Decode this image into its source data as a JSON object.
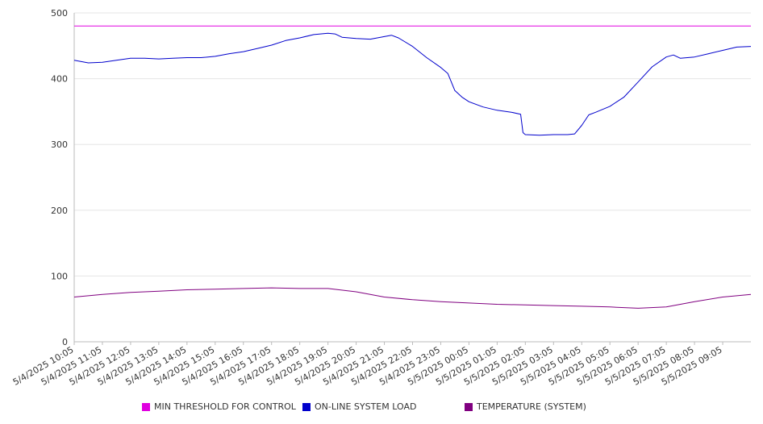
{
  "chart_data": {
    "type": "line",
    "title": "",
    "xlabel": "",
    "ylabel": "",
    "ylim": [
      0,
      500
    ],
    "yticks": [
      0,
      100,
      200,
      300,
      400,
      500
    ],
    "x_ticks": [
      "5/4/2025 10:05",
      "5/4/2025 11:05",
      "5/4/2025 12:05",
      "5/4/2025 13:05",
      "5/4/2025 14:05",
      "5/4/2025 15:05",
      "5/4/2025 16:05",
      "5/4/2025 17:05",
      "5/4/2025 18:05",
      "5/4/2025 19:05",
      "5/4/2025 20:05",
      "5/4/2025 21:05",
      "5/4/2025 22:05",
      "5/4/2025 23:05",
      "5/5/2025 00:05",
      "5/5/2025 01:05",
      "5/5/2025 02:05",
      "5/5/2025 03:05",
      "5/5/2025 04:05",
      "5/5/2025 05:05",
      "5/5/2025 06:05",
      "5/5/2025 07:05",
      "5/5/2025 08:05",
      "5/5/2025 09:05"
    ],
    "x_range": [
      "5/4/2025 10:05",
      "5/5/2025 10:05"
    ],
    "grid": true,
    "legend_position": "bottom",
    "series": [
      {
        "name": "MIN THRESHOLD FOR CONTROL",
        "color": "#e000e0",
        "x": [
          "5/4/2025 10:05",
          "5/5/2025 10:05"
        ],
        "values": [
          480,
          480
        ]
      },
      {
        "name": "ON-LINE SYSTEM LOAD",
        "color": "#0000cc",
        "x": [
          "5/4/2025 10:05",
          "5/4/2025 10:35",
          "5/4/2025 11:05",
          "5/4/2025 11:35",
          "5/4/2025 12:05",
          "5/4/2025 12:35",
          "5/4/2025 13:05",
          "5/4/2025 13:35",
          "5/4/2025 14:05",
          "5/4/2025 14:35",
          "5/4/2025 15:05",
          "5/4/2025 15:35",
          "5/4/2025 16:05",
          "5/4/2025 16:35",
          "5/4/2025 17:05",
          "5/4/2025 17:35",
          "5/4/2025 18:05",
          "5/4/2025 18:35",
          "5/4/2025 19:05",
          "5/4/2025 19:20",
          "5/4/2025 19:35",
          "5/4/2025 20:05",
          "5/4/2025 20:35",
          "5/4/2025 21:05",
          "5/4/2025 21:20",
          "5/4/2025 21:35",
          "5/4/2025 22:05",
          "5/4/2025 22:35",
          "5/4/2025 23:05",
          "5/4/2025 23:20",
          "5/4/2025 23:35",
          "5/4/2025 23:50",
          "5/5/2025 00:05",
          "5/5/2025 00:35",
          "5/5/2025 01:05",
          "5/5/2025 01:35",
          "5/5/2025 01:55",
          "5/5/2025 02:00",
          "5/5/2025 02:05",
          "5/5/2025 02:35",
          "5/5/2025 03:05",
          "5/5/2025 03:35",
          "5/5/2025 03:50",
          "5/5/2025 04:05",
          "5/5/2025 04:20",
          "5/5/2025 04:35",
          "5/5/2025 05:05",
          "5/5/2025 05:35",
          "5/5/2025 06:05",
          "5/5/2025 06:35",
          "5/5/2025 07:05",
          "5/5/2025 07:20",
          "5/5/2025 07:35",
          "5/5/2025 08:05",
          "5/5/2025 08:35",
          "5/5/2025 09:05",
          "5/5/2025 09:35",
          "5/5/2025 10:05"
        ],
        "values": [
          428,
          424,
          425,
          428,
          431,
          431,
          430,
          431,
          432,
          432,
          434,
          438,
          441,
          446,
          451,
          458,
          462,
          467,
          469,
          468,
          463,
          461,
          460,
          464,
          466,
          462,
          449,
          432,
          417,
          408,
          382,
          372,
          365,
          357,
          352,
          349,
          346,
          318,
          315,
          314,
          315,
          315,
          316,
          329,
          345,
          349,
          358,
          372,
          395,
          418,
          433,
          436,
          431,
          433,
          438,
          443,
          448,
          449
        ]
      },
      {
        "name": "TEMPERATURE (SYSTEM)",
        "color": "#800080",
        "x": [
          "5/4/2025 10:05",
          "5/4/2025 11:05",
          "5/4/2025 12:05",
          "5/4/2025 13:05",
          "5/4/2025 14:05",
          "5/4/2025 15:05",
          "5/4/2025 16:05",
          "5/4/2025 17:05",
          "5/4/2025 18:05",
          "5/4/2025 19:05",
          "5/4/2025 20:05",
          "5/4/2025 21:05",
          "5/4/2025 22:05",
          "5/4/2025 23:05",
          "5/5/2025 00:05",
          "5/5/2025 01:05",
          "5/5/2025 02:05",
          "5/5/2025 03:05",
          "5/5/2025 04:05",
          "5/5/2025 05:05",
          "5/5/2025 06:05",
          "5/5/2025 07:05",
          "5/5/2025 08:05",
          "5/5/2025 09:05",
          "5/5/2025 10:05"
        ],
        "values": [
          68,
          72,
          75,
          77,
          79,
          80,
          81,
          82,
          81,
          81,
          76,
          68,
          64,
          61,
          59,
          57,
          56,
          55,
          54,
          53,
          51,
          53,
          61,
          68,
          72
        ]
      }
    ]
  }
}
